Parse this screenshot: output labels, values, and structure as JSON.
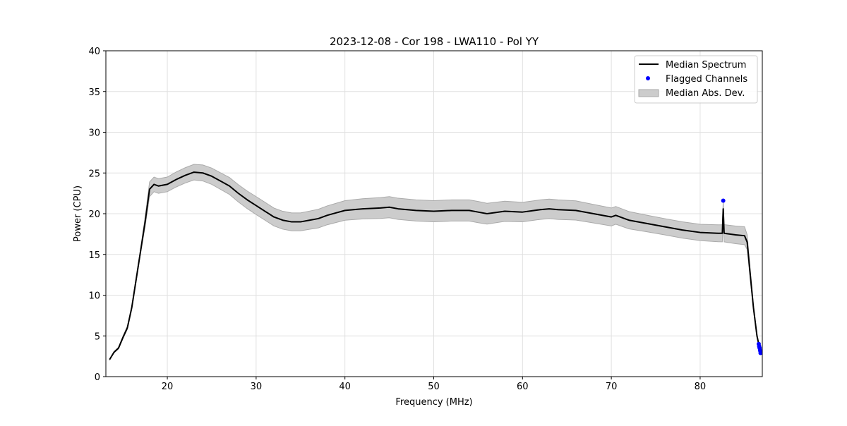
{
  "chart_data": {
    "type": "line",
    "title": "2023-12-08 - Cor 198 - LWA110 - Pol YY",
    "xlabel": "Frequency (MHz)",
    "ylabel": "Power (CPU)",
    "xlim": [
      13.08,
      87.0
    ],
    "ylim": [
      0,
      40
    ],
    "xticks": [
      20,
      30,
      40,
      50,
      60,
      70,
      80
    ],
    "yticks": [
      0,
      5,
      10,
      15,
      20,
      25,
      30,
      35,
      40
    ],
    "grid": true,
    "legend_position": "top-right",
    "legend": [
      "Median Spectrum",
      "Flagged Channels",
      "Median Abs. Dev."
    ],
    "colors": {
      "median": "#000000",
      "flagged": "#0000ff",
      "mad": "#cccccc",
      "mad_edge": "#aaaaaa",
      "grid": "#e0e0e0"
    },
    "series": [
      {
        "name": "Median Spectrum",
        "x": [
          13.5,
          14,
          14.5,
          15,
          15.5,
          16,
          16.5,
          17,
          17.5,
          18,
          18.5,
          19,
          20,
          21,
          22,
          23,
          24,
          25,
          26,
          27,
          28,
          29,
          30,
          31,
          32,
          33,
          34,
          35,
          36,
          37,
          38,
          39,
          40,
          42,
          44,
          45,
          46,
          48,
          50,
          52,
          54,
          55,
          56,
          58,
          60,
          62,
          63,
          64,
          66,
          68,
          70,
          70.5,
          72,
          74,
          76,
          78,
          80,
          82,
          82.5,
          82.6,
          82.7,
          84,
          85,
          85.3,
          85.6,
          86,
          86.4,
          86.6,
          86.8
        ],
        "y": [
          2.1,
          3.0,
          3.5,
          4.8,
          6.0,
          8.5,
          12,
          15.5,
          19,
          23,
          23.6,
          23.4,
          23.6,
          24.2,
          24.7,
          25.1,
          25.0,
          24.6,
          24.0,
          23.4,
          22.5,
          21.7,
          21.0,
          20.3,
          19.6,
          19.2,
          19.0,
          19.0,
          19.2,
          19.4,
          19.8,
          20.1,
          20.4,
          20.6,
          20.7,
          20.8,
          20.6,
          20.4,
          20.3,
          20.4,
          20.4,
          20.2,
          20.0,
          20.3,
          20.2,
          20.5,
          20.6,
          20.5,
          20.4,
          20.0,
          19.6,
          19.8,
          19.2,
          18.8,
          18.4,
          18.0,
          17.7,
          17.6,
          17.6,
          20.6,
          17.6,
          17.4,
          17.3,
          16.5,
          13,
          8.5,
          5.0,
          4.0,
          3.0
        ]
      },
      {
        "name": "Median Abs. Dev.",
        "x": [
          13.5,
          17,
          18,
          20,
          25,
          30,
          35,
          40,
          45,
          50,
          55,
          60,
          65,
          70,
          75,
          80,
          85,
          85.3,
          86,
          86.8
        ],
        "y": [
          0.05,
          0.3,
          0.9,
          0.9,
          1.0,
          1.1,
          1.1,
          1.2,
          1.3,
          1.3,
          1.3,
          1.2,
          1.2,
          1.1,
          1.0,
          1.0,
          1.1,
          0.9,
          0.3,
          0.1
        ]
      },
      {
        "name": "Flagged Channels",
        "x": [
          82.6,
          86.6,
          86.65,
          86.7,
          86.75,
          86.8
        ],
        "y": [
          21.6,
          4.0,
          3.7,
          3.5,
          3.2,
          2.9
        ]
      }
    ]
  }
}
